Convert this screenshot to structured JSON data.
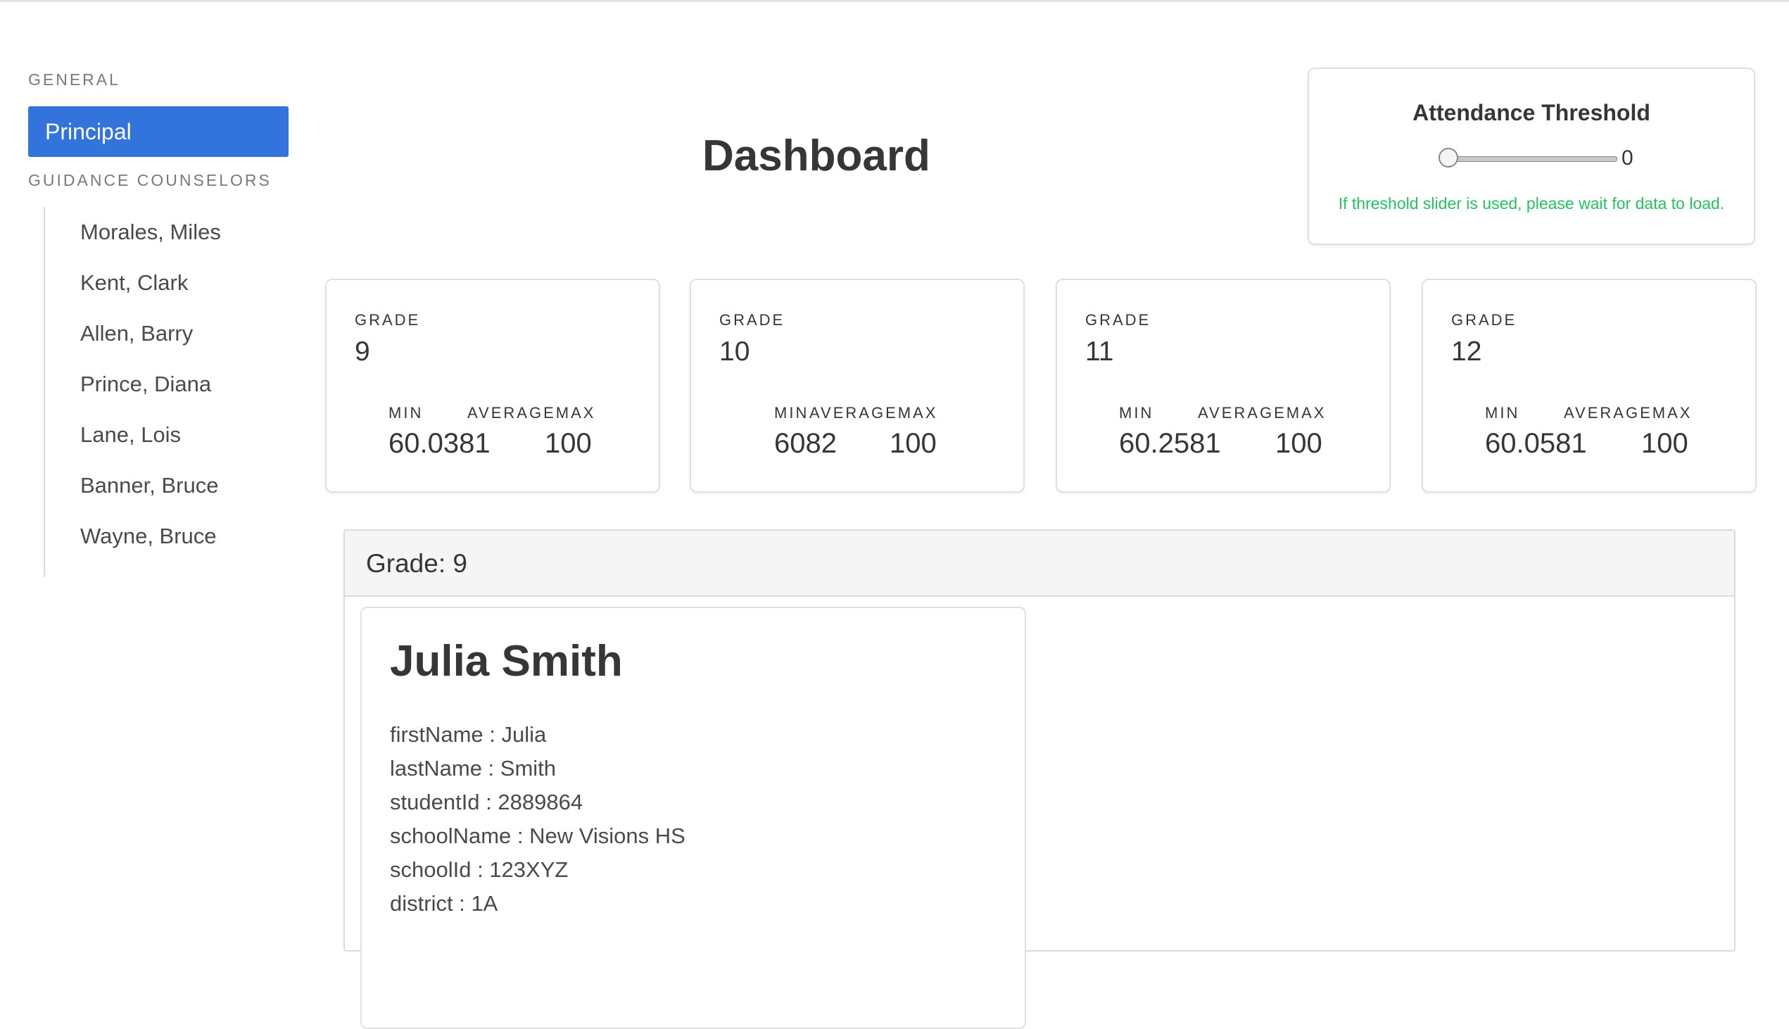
{
  "sidebar": {
    "general_label": "GENERAL",
    "principal_label": "Principal",
    "guidance_label": "GUIDANCE COUNSELORS",
    "counselors": [
      "Morales, Miles",
      "Kent, Clark",
      "Allen, Barry",
      "Prince, Diana",
      "Lane, Lois",
      "Banner, Bruce",
      "Wayne, Bruce"
    ]
  },
  "header": {
    "title": "Dashboard"
  },
  "threshold": {
    "title": "Attendance Threshold",
    "value": "0",
    "slider_fraction": 0,
    "note": "If threshold slider is used, please wait for data to load.",
    "note_color": "#23c45e"
  },
  "grades": [
    {
      "label": "GRADE",
      "grade": "9",
      "min_label": "MIN",
      "avg_label": "AVERAGEMAX",
      "min_value": "60.0381",
      "max_value": "100"
    },
    {
      "label": "GRADE",
      "grade": "10",
      "min_label": "MIN",
      "avg_label": "AVERAGEMAX",
      "min_value": "6082",
      "max_value": "100"
    },
    {
      "label": "GRADE",
      "grade": "11",
      "min_label": "MIN",
      "avg_label": "AVERAGEMAX",
      "min_value": "60.2581",
      "max_value": "100"
    },
    {
      "label": "GRADE",
      "grade": "12",
      "min_label": "MIN",
      "avg_label": "AVERAGEMAX",
      "min_value": "60.0581",
      "max_value": "100"
    }
  ],
  "grade_section": {
    "header": "Grade: 9",
    "student": {
      "name": "Julia Smith",
      "fields": [
        "firstName : Julia",
        "lastName : Smith",
        "studentId : 2889864",
        "schoolName : New Visions HS",
        "schoolId : 123XYZ",
        "district : 1A"
      ]
    }
  },
  "colors": {
    "accent": "#3273dc"
  }
}
